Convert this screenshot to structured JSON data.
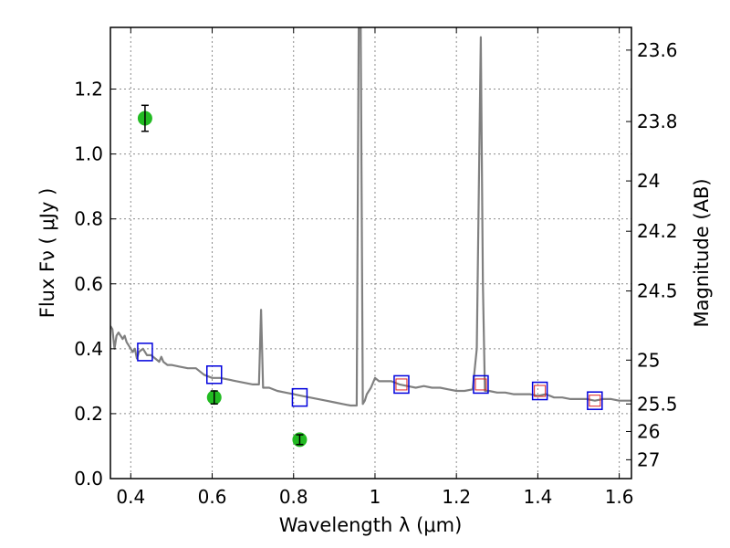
{
  "chart_data": {
    "type": "scatter",
    "xlabel": "Wavelength  λ (μm)",
    "ylabel": "Flux  Fν  ( μJy )",
    "ylabel_right": "Magnitude (AB)",
    "xlim": [
      0.35,
      1.63
    ],
    "ylim": [
      0.0,
      1.39
    ],
    "grid": true,
    "x_ticks": [
      0.4,
      0.6,
      0.8,
      1.0,
      1.2,
      1.4,
      1.6
    ],
    "x_tick_labels": [
      "0.4",
      "0.6",
      "0.8",
      "1",
      "1.2",
      "1.4",
      "1.6"
    ],
    "y_ticks": [
      0.0,
      0.2,
      0.4,
      0.6,
      0.8,
      1.0,
      1.2
    ],
    "y_tick_labels": [
      "0.0",
      "0.2",
      "0.4",
      "0.6",
      "0.8",
      "1.0",
      "1.2"
    ],
    "right_ticks": [
      {
        "label": "23.6",
        "flux": 1.32
      },
      {
        "label": "23.8",
        "flux": 1.1
      },
      {
        "label": "24",
        "flux": 0.917
      },
      {
        "label": "24.2",
        "flux": 0.762
      },
      {
        "label": "24.5",
        "flux": 0.578
      },
      {
        "label": "25",
        "flux": 0.365
      },
      {
        "label": "25.5",
        "flux": 0.23
      },
      {
        "label": "26",
        "flux": 0.145
      },
      {
        "label": "27",
        "flux": 0.058
      }
    ],
    "colors": {
      "spectrum": "#808080",
      "observed": "#22bb22",
      "model_box": "#0000dd",
      "model_inner": "#dd2222",
      "grid": "#8c8c8c"
    },
    "series": [
      {
        "style": "line",
        "points": [
          [
            0.35,
            0.47
          ],
          [
            0.355,
            0.46
          ],
          [
            0.36,
            0.4
          ],
          [
            0.365,
            0.44
          ],
          [
            0.37,
            0.45
          ],
          [
            0.375,
            0.44
          ],
          [
            0.38,
            0.43
          ],
          [
            0.385,
            0.44
          ],
          [
            0.39,
            0.42
          ],
          [
            0.395,
            0.41
          ],
          [
            0.4,
            0.4
          ],
          [
            0.405,
            0.39
          ],
          [
            0.41,
            0.4
          ],
          [
            0.415,
            0.37
          ],
          [
            0.42,
            0.39
          ],
          [
            0.43,
            0.4
          ],
          [
            0.44,
            0.38
          ],
          [
            0.45,
            0.38
          ],
          [
            0.46,
            0.37
          ],
          [
            0.47,
            0.36
          ],
          [
            0.475,
            0.375
          ],
          [
            0.48,
            0.36
          ],
          [
            0.49,
            0.35
          ],
          [
            0.5,
            0.35
          ],
          [
            0.52,
            0.345
          ],
          [
            0.54,
            0.34
          ],
          [
            0.56,
            0.34
          ],
          [
            0.58,
            0.32
          ],
          [
            0.6,
            0.31
          ],
          [
            0.62,
            0.31
          ],
          [
            0.64,
            0.305
          ],
          [
            0.66,
            0.3
          ],
          [
            0.68,
            0.295
          ],
          [
            0.7,
            0.29
          ],
          [
            0.715,
            0.29
          ],
          [
            0.72,
            0.52
          ],
          [
            0.725,
            0.28
          ],
          [
            0.74,
            0.28
          ],
          [
            0.76,
            0.27
          ],
          [
            0.78,
            0.265
          ],
          [
            0.8,
            0.26
          ],
          [
            0.82,
            0.255
          ],
          [
            0.84,
            0.25
          ],
          [
            0.86,
            0.245
          ],
          [
            0.88,
            0.24
          ],
          [
            0.9,
            0.235
          ],
          [
            0.92,
            0.23
          ],
          [
            0.94,
            0.225
          ],
          [
            0.955,
            0.225
          ],
          [
            0.96,
            1.39
          ],
          [
            0.965,
            1.39
          ],
          [
            0.97,
            0.23
          ],
          [
            0.975,
            0.24
          ],
          [
            0.98,
            0.26
          ],
          [
            0.99,
            0.28
          ],
          [
            1.0,
            0.31
          ],
          [
            1.01,
            0.3
          ],
          [
            1.02,
            0.3
          ],
          [
            1.04,
            0.3
          ],
          [
            1.06,
            0.29
          ],
          [
            1.08,
            0.285
          ],
          [
            1.1,
            0.28
          ],
          [
            1.12,
            0.285
          ],
          [
            1.14,
            0.28
          ],
          [
            1.16,
            0.28
          ],
          [
            1.18,
            0.275
          ],
          [
            1.2,
            0.27
          ],
          [
            1.22,
            0.27
          ],
          [
            1.24,
            0.275
          ],
          [
            1.25,
            0.4
          ],
          [
            1.26,
            1.36
          ],
          [
            1.265,
            0.6
          ],
          [
            1.27,
            0.27
          ],
          [
            1.28,
            0.27
          ],
          [
            1.3,
            0.265
          ],
          [
            1.32,
            0.265
          ],
          [
            1.34,
            0.26
          ],
          [
            1.36,
            0.26
          ],
          [
            1.38,
            0.26
          ],
          [
            1.4,
            0.255
          ],
          [
            1.42,
            0.26
          ],
          [
            1.44,
            0.25
          ],
          [
            1.46,
            0.25
          ],
          [
            1.48,
            0.245
          ],
          [
            1.5,
            0.245
          ],
          [
            1.52,
            0.245
          ],
          [
            1.54,
            0.24
          ],
          [
            1.56,
            0.245
          ],
          [
            1.58,
            0.245
          ],
          [
            1.6,
            0.24
          ],
          [
            1.63,
            0.24
          ]
        ]
      },
      {
        "style": "points-with-errorbars",
        "points": [
          {
            "x": 0.435,
            "y": 1.11,
            "err": 0.04
          },
          {
            "x": 0.605,
            "y": 0.25,
            "err": 0.02
          },
          {
            "x": 0.815,
            "y": 0.12,
            "err": 0.015
          }
        ]
      },
      {
        "style": "square-markers",
        "points": [
          {
            "x": 0.435,
            "y": 0.39,
            "inner": false
          },
          {
            "x": 0.605,
            "y": 0.32,
            "inner": false
          },
          {
            "x": 0.815,
            "y": 0.25,
            "inner": false
          },
          {
            "x": 1.065,
            "y": 0.29,
            "inner": true
          },
          {
            "x": 1.26,
            "y": 0.29,
            "inner": true
          },
          {
            "x": 1.405,
            "y": 0.27,
            "inner": true
          },
          {
            "x": 1.54,
            "y": 0.24,
            "inner": true
          }
        ]
      }
    ]
  }
}
